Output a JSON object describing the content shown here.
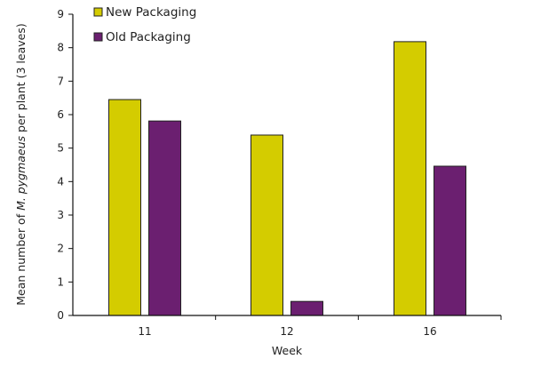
{
  "chart_data": {
    "type": "bar",
    "title": "",
    "xlabel": "Week",
    "ylabel_parts": {
      "prefix": "Mean number of ",
      "italic": "M. pygmaeus",
      "suffix": " per plant (3 leaves)"
    },
    "ylabel": "Mean number of M. pygmaeus per plant (3 leaves)",
    "categories": [
      "11",
      "12",
      "16"
    ],
    "series": [
      {
        "name": "New Packaging",
        "color": "#D4CC00",
        "values": [
          6.45,
          5.39,
          8.18
        ]
      },
      {
        "name": "Old Packaging",
        "color": "#6B1F70",
        "values": [
          5.81,
          0.42,
          4.46
        ]
      }
    ],
    "ylim": [
      0,
      9
    ],
    "yticks": [
      "0",
      "1",
      "2",
      "3",
      "4",
      "5",
      "6",
      "7",
      "8",
      "9"
    ],
    "grid": false,
    "legend_position": "top-left inside"
  }
}
